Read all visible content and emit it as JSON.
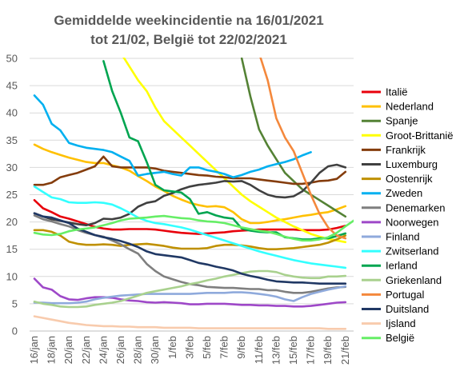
{
  "chart_data": {
    "type": "line",
    "title_lines": [
      "Gemiddelde weekincidentie  na 16/01/2021",
      "tot 21/02, België tot 22/02/2021"
    ],
    "xlabel": "",
    "ylabel": "",
    "ylim": [
      0,
      50
    ],
    "yticks": [
      0,
      5,
      10,
      15,
      20,
      25,
      30,
      35,
      40,
      45,
      50
    ],
    "grid": "horizontal",
    "legend_position": "right",
    "x": [
      "16/jan",
      "17/jan",
      "18/jan",
      "19/jan",
      "20/jan",
      "21/jan",
      "22/jan",
      "23/jan",
      "24/jan",
      "25/jan",
      "26/jan",
      "27/jan",
      "28/jan",
      "29/jan",
      "30/jan",
      "31/jan",
      "1/feb",
      "2/feb",
      "3/feb",
      "4/feb",
      "5/feb",
      "6/feb",
      "7/feb",
      "8/feb",
      "9/feb",
      "10/feb",
      "11/feb",
      "12/feb",
      "13/feb",
      "14/feb",
      "15/feb",
      "16/feb",
      "17/feb",
      "18/feb",
      "19/feb",
      "20/feb",
      "21/feb",
      "22/feb"
    ],
    "xtick_labels": [
      "16/jan",
      "18/jan",
      "20/jan",
      "22/jan",
      "24/jan",
      "26/jan",
      "28/jan",
      "30/jan",
      "1/feb",
      "3/feb",
      "5/feb",
      "7/feb",
      "9/feb",
      "11/feb",
      "13/feb",
      "15/feb",
      "17/feb",
      "19/feb",
      "21/feb"
    ],
    "series": [
      {
        "name": "Italië",
        "color": "#e8000b",
        "values": [
          24,
          22.5,
          21.8,
          21,
          20.6,
          20.1,
          19.6,
          19.1,
          18.8,
          18.6,
          18.6,
          18.7,
          18.7,
          18.7,
          18.6,
          18.4,
          18.2,
          18,
          17.9,
          17.8,
          17.9,
          18,
          18.1,
          18.3,
          18.4,
          18.5,
          18.6,
          18.6,
          18.6,
          18.6,
          18.6,
          18.5,
          18.5,
          18.5,
          18.6,
          18.9,
          19.3,
          null
        ]
      },
      {
        "name": "Nederland",
        "color": "#ffc000",
        "values": [
          34.2,
          33.4,
          32.8,
          32.3,
          31.8,
          31.4,
          31,
          30.8,
          30.8,
          30.4,
          30,
          29.4,
          28.4,
          27.5,
          26.5,
          25.7,
          24.8,
          24.1,
          23.5,
          23.1,
          22.8,
          22.9,
          22.7,
          21.8,
          20.5,
          19.8,
          19.8,
          20,
          20.3,
          20.5,
          20.8,
          21.1,
          21.3,
          21.6,
          21.8,
          22.3,
          22.9,
          null
        ]
      },
      {
        "name": "Spanje",
        "color": "#548235",
        "values": [
          null,
          null,
          null,
          null,
          null,
          null,
          null,
          null,
          null,
          null,
          null,
          null,
          null,
          null,
          null,
          null,
          null,
          null,
          null,
          null,
          null,
          null,
          null,
          null,
          50,
          43,
          37,
          34,
          31.5,
          29,
          27.5,
          26,
          25,
          24,
          23,
          22,
          21,
          null
        ]
      },
      {
        "name": "Groot-Brittanië",
        "color": "#ffff00",
        "values": [
          null,
          null,
          null,
          null,
          null,
          null,
          null,
          null,
          null,
          null,
          51,
          48.5,
          46,
          44,
          41,
          38.5,
          37,
          35.5,
          34,
          32.5,
          31,
          29.5,
          28,
          26.5,
          25,
          23.8,
          22.8,
          21.8,
          20.8,
          20,
          19.2,
          18.5,
          17.8,
          17.3,
          16.9,
          16.6,
          16.3,
          null
        ]
      },
      {
        "name": "Frankrijk",
        "color": "#843c0c",
        "values": [
          26.8,
          26.8,
          27.2,
          28.2,
          28.6,
          29,
          29.6,
          30.2,
          32,
          30.2,
          30,
          30,
          30,
          30,
          29.8,
          29.4,
          29.2,
          29,
          28.8,
          28.6,
          28.5,
          28.3,
          28.2,
          28,
          28,
          28,
          27.8,
          27.6,
          27.4,
          27.2,
          27,
          27,
          27.2,
          27.5,
          27.6,
          27.9,
          29.2,
          null
        ]
      },
      {
        "name": "Luxemburg",
        "color": "#404040",
        "values": [
          21.6,
          21,
          20.5,
          20.2,
          19.9,
          19.6,
          19.4,
          19.8,
          20.6,
          20.5,
          20.8,
          21.5,
          22.8,
          23.5,
          23.8,
          24.8,
          25.3,
          26,
          26.5,
          26.8,
          27,
          27.2,
          27.5,
          27.4,
          27.5,
          26.8,
          25.8,
          25,
          24.6,
          24.5,
          24.7,
          25.6,
          27.2,
          29,
          30.2,
          30.5,
          30,
          null
        ]
      },
      {
        "name": "Oostenrijk",
        "color": "#bf9000",
        "values": [
          18.5,
          18.5,
          18.2,
          17.5,
          16.4,
          16,
          15.8,
          15.8,
          15.9,
          15.8,
          15.6,
          15.8,
          15.9,
          16,
          15.8,
          15.6,
          15.3,
          15.1,
          15.1,
          15.1,
          15.2,
          15.6,
          15.8,
          15.8,
          15.7,
          15.5,
          15.2,
          15,
          15,
          15.1,
          15.2,
          15.4,
          15.6,
          15.8,
          16.2,
          16.8,
          17.5,
          null
        ]
      },
      {
        "name": "Zweden",
        "color": "#00b0f0",
        "values": [
          43.2,
          41.5,
          38,
          36.8,
          34.5,
          34,
          33.6,
          33.4,
          33.2,
          32.8,
          32,
          31.2,
          28.5,
          28.8,
          29,
          29.2,
          28.8,
          28.5,
          30,
          30,
          29.5,
          29.2,
          28.8,
          28.2,
          28.6,
          29.2,
          29.6,
          30.2,
          30.6,
          31,
          31.5,
          32.2,
          32.8,
          null,
          null,
          null,
          null,
          null
        ]
      },
      {
        "name": "Denemarken",
        "color": "#7f7f7f",
        "values": [
          21.2,
          20.5,
          20.1,
          19.6,
          19.2,
          18.5,
          18,
          17.6,
          17.3,
          16.6,
          15.9,
          15,
          14.2,
          12.3,
          11,
          10,
          9.5,
          9,
          8.6,
          8.4,
          8.1,
          8,
          7.9,
          7.9,
          7.8,
          7.7,
          7.7,
          7.5,
          7.5,
          7.2,
          7,
          7,
          7.2,
          7.5,
          7.8,
          8,
          8.1,
          null
        ]
      },
      {
        "name": "Noorwegen",
        "color": "#9e48c8",
        "values": [
          9.6,
          8,
          7.6,
          6.4,
          5.8,
          5.7,
          6,
          6.2,
          6.2,
          6.1,
          5.8,
          5.6,
          5.5,
          5.3,
          5.2,
          5.3,
          5.2,
          5.1,
          4.9,
          4.9,
          5,
          5,
          5,
          4.9,
          4.8,
          4.8,
          4.7,
          4.7,
          4.6,
          4.6,
          4.5,
          4.5,
          4.6,
          4.8,
          5,
          5.2,
          5.3,
          null
        ]
      },
      {
        "name": "Finland",
        "color": "#8faadc",
        "values": [
          5.2,
          5.2,
          5.1,
          5.1,
          5.1,
          5.2,
          5.4,
          5.8,
          6.1,
          6.3,
          6.5,
          6.6,
          6.7,
          6.8,
          6.8,
          6.8,
          6.8,
          6.8,
          6.8,
          6.9,
          7,
          7,
          7,
          7.1,
          7.1,
          7,
          6.8,
          6.6,
          6.3,
          5.8,
          5.5,
          6.2,
          6.8,
          7.2,
          7.6,
          7.9,
          8.2,
          null
        ]
      },
      {
        "name": "Zwitserland",
        "color": "#33ffff",
        "values": [
          26.5,
          25.5,
          24.5,
          24.2,
          23.6,
          23.5,
          23.5,
          23.6,
          23.5,
          23.2,
          22.5,
          21.7,
          20.8,
          20.2,
          19.8,
          19.6,
          19.3,
          19,
          18.6,
          18.1,
          17.6,
          17.1,
          16.6,
          16.1,
          15.6,
          15.1,
          14.6,
          14.2,
          13.8,
          13.4,
          13,
          12.7,
          12.4,
          12.2,
          12,
          11.8,
          11.6,
          null
        ]
      },
      {
        "name": "Ierland",
        "color": "#00a550",
        "values": [
          null,
          null,
          null,
          null,
          null,
          null,
          null,
          null,
          49.5,
          44,
          40,
          35.5,
          34.8,
          31,
          26.8,
          25.8,
          25.6,
          25.4,
          24.2,
          21.5,
          21.8,
          21.2,
          20.8,
          20.6,
          18.8,
          18.4,
          18.2,
          18.1,
          18.1,
          17.2,
          17,
          16.8,
          16.8,
          17,
          17,
          17.4,
          17.9,
          null
        ]
      },
      {
        "name": "Griekenland",
        "color": "#a9d18e",
        "values": [
          5.4,
          5,
          4.8,
          4.5,
          4.4,
          4.4,
          4.5,
          4.8,
          5,
          5.2,
          5.5,
          6,
          6.5,
          7,
          7.3,
          7.6,
          7.9,
          8.2,
          8.6,
          8.9,
          9.3,
          9.6,
          10,
          10.3,
          10.6,
          10.9,
          11,
          11,
          10.8,
          10.3,
          10,
          9.8,
          9.7,
          9.7,
          10,
          10,
          10.1,
          null
        ]
      },
      {
        "name": "Portugal",
        "color": "#f4883c",
        "values": [
          null,
          null,
          null,
          null,
          null,
          null,
          null,
          null,
          null,
          null,
          null,
          null,
          null,
          null,
          null,
          null,
          null,
          null,
          null,
          null,
          null,
          null,
          null,
          null,
          null,
          null,
          51,
          46,
          39,
          35.5,
          33,
          29,
          25,
          21.5,
          19,
          17.5,
          17,
          null
        ]
      },
      {
        "name": "Duitsland",
        "color": "#203864",
        "values": [
          21.6,
          21,
          20.8,
          20.3,
          19.8,
          18.8,
          18.2,
          17.6,
          17.2,
          16.9,
          16.5,
          16,
          15.4,
          14.6,
          14.1,
          13.9,
          13.7,
          13.5,
          13,
          12.5,
          12.2,
          11.8,
          11.5,
          11.1,
          10.5,
          10.1,
          9.8,
          9.4,
          9.1,
          9,
          8.9,
          8.9,
          8.8,
          8.7,
          8.7,
          8.7,
          8.7,
          null
        ]
      },
      {
        "name": "Ijsland",
        "color": "#f8cbad",
        "values": [
          2.7,
          2.4,
          2.1,
          1.8,
          1.5,
          1.3,
          1.1,
          1,
          0.9,
          0.9,
          0.8,
          0.8,
          0.7,
          0.7,
          0.7,
          0.6,
          0.6,
          0.6,
          0.6,
          0.5,
          0.5,
          0.5,
          0.5,
          0.5,
          0.5,
          0.5,
          0.5,
          0.5,
          0.5,
          0.5,
          0.5,
          0.5,
          0.5,
          0.5,
          0.4,
          0.4,
          0.4,
          null
        ]
      },
      {
        "name": "België",
        "color": "#66ee66",
        "values": [
          18,
          17.7,
          17.6,
          17.8,
          18.3,
          18.6,
          18.8,
          19,
          19.4,
          19.8,
          20.3,
          20.6,
          20.7,
          20.8,
          21,
          21.1,
          20.9,
          20.7,
          20.6,
          20.3,
          20.1,
          20,
          19.8,
          19.4,
          19,
          18.7,
          18.4,
          18.2,
          17.8,
          17.3,
          16.9,
          16.6,
          16.6,
          16.8,
          17.2,
          18,
          19.2,
          20.3
        ]
      }
    ]
  }
}
